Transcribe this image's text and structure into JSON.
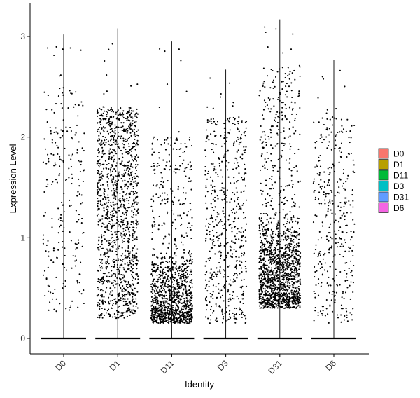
{
  "chart_data": {
    "type": "scatter",
    "subtype": "violin-jitter",
    "title": "",
    "xlabel": "Identity",
    "ylabel": "Expression Level",
    "categories": [
      "D0",
      "D1",
      "D11",
      "D3",
      "D31",
      "D6"
    ],
    "ylim": [
      -0.15,
      3.2
    ],
    "yticks": [
      0,
      1,
      2,
      3
    ],
    "grid": false,
    "legend": {
      "placement": "right",
      "entries": [
        {
          "label": "D0",
          "color": "#F8766D"
        },
        {
          "label": "D1",
          "color": "#B79F00"
        },
        {
          "label": "D11",
          "color": "#00BA38"
        },
        {
          "label": "D3",
          "color": "#00BFC4"
        },
        {
          "label": "D31",
          "color": "#619CFF"
        },
        {
          "label": "D6",
          "color": "#F564E3"
        }
      ]
    },
    "series": [
      {
        "category": "D0",
        "max": 3.02,
        "zeros": true,
        "nonzero_count": 230,
        "low": 0.25,
        "high": 2.5,
        "mode": "uniform"
      },
      {
        "category": "D1",
        "max": 3.08,
        "zeros": true,
        "nonzero_count": 1300,
        "low": 0.2,
        "high": 2.3,
        "mode": "uniform"
      },
      {
        "category": "D11",
        "max": 2.95,
        "zeros": true,
        "nonzero_count": 1200,
        "low": 0.15,
        "high": 2.0,
        "mode": "skew-low",
        "peak": 0.35
      },
      {
        "category": "D3",
        "max": 2.67,
        "zeros": true,
        "nonzero_count": 560,
        "low": 0.15,
        "high": 2.2,
        "mode": "uniform"
      },
      {
        "category": "D31",
        "max": 3.17,
        "zeros": true,
        "nonzero_count": 1500,
        "low": 0.3,
        "high": 2.7,
        "mode": "skew-low",
        "peak": 0.6
      },
      {
        "category": "D6",
        "max": 2.77,
        "zeros": true,
        "nonzero_count": 360,
        "low": 0.15,
        "high": 2.2,
        "mode": "uniform"
      }
    ],
    "colors": {
      "axis": "#000000",
      "points": "#000000",
      "legend_border": "#333333"
    }
  }
}
